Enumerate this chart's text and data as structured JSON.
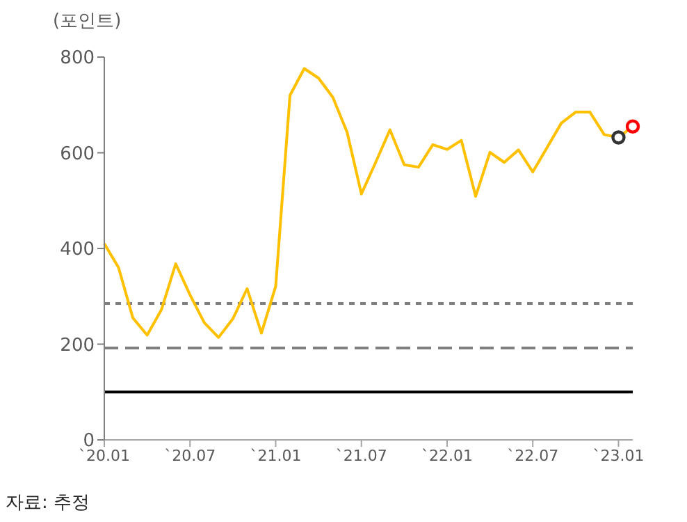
{
  "chart_data": {
    "type": "line",
    "ylabel": "(포인트)",
    "annotations": [
      "자료: 추정"
    ],
    "x": [
      "2020-01",
      "2020-02",
      "2020-03",
      "2020-04",
      "2020-05",
      "2020-06",
      "2020-07",
      "2020-08",
      "2020-09",
      "2020-10",
      "2020-11",
      "2020-12",
      "2021-01",
      "2021-02",
      "2021-03",
      "2021-04",
      "2021-05",
      "2021-06",
      "2021-07",
      "2021-08",
      "2021-09",
      "2021-10",
      "2021-11",
      "2021-12",
      "2022-01",
      "2022-02",
      "2022-03",
      "2022-04",
      "2022-05",
      "2022-06",
      "2022-07",
      "2022-08",
      "2022-09",
      "2022-10",
      "2022-11",
      "2022-12",
      "2023-01",
      "2023-02"
    ],
    "series": [
      {
        "color": "#ffc000",
        "marker": "none",
        "values": [
          410,
          360,
          255,
          219,
          272,
          368,
          303,
          245,
          214,
          253,
          316,
          223,
          321,
          720,
          776,
          756,
          716,
          643,
          514,
          580,
          648,
          575,
          570,
          617,
          607,
          626,
          509,
          601,
          580,
          606,
          560,
          611,
          662,
          685,
          685,
          638,
          632,
          655
        ]
      },
      {
        "type": "scatter",
        "x": [
          "2023-01",
          "2023-02"
        ],
        "colors": [
          "#333333",
          "#ff0000"
        ],
        "marker": "circle",
        "values": [
          632,
          655
        ]
      }
    ],
    "xlim": [
      "2020-01",
      "2023-02"
    ],
    "xticks": [
      {
        "value": "2020-01",
        "label": "`20.01"
      },
      {
        "value": "2020-07",
        "label": "`20.07"
      },
      {
        "value": "2021-01",
        "label": "`21.01"
      },
      {
        "value": "2021-07",
        "label": "`21.07"
      },
      {
        "value": "2022-01",
        "label": "`22.01"
      },
      {
        "value": "2022-07",
        "label": "`22.07"
      },
      {
        "value": "2023-01",
        "label": "`23.01"
      }
    ],
    "ylim": [
      0,
      800
    ],
    "yticks": [
      0,
      200,
      400,
      600,
      800
    ],
    "ref_lines": [
      {
        "axis": "y",
        "value": 285,
        "color": "#7f7f7f",
        "line_style": "dotted"
      },
      {
        "axis": "y",
        "value": 192,
        "color": "#7f7f7f",
        "line_style": "dashed"
      },
      {
        "axis": "y",
        "value": 100,
        "color": "#000000",
        "line_style": "solid"
      }
    ],
    "grid": false,
    "legend": false
  }
}
